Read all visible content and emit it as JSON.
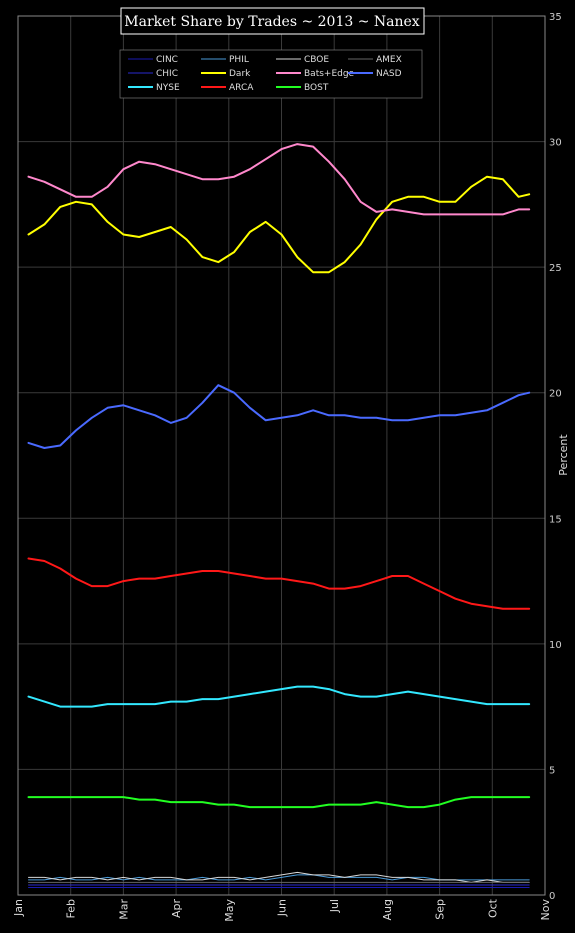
{
  "chart_data": {
    "type": "line",
    "title": "Market Share by Trades ~ 2013 ~ Nanex",
    "ylabel": "Percent",
    "xlabel": "",
    "ylim": [
      0,
      35
    ],
    "yticks": [
      0,
      5,
      10,
      15,
      20,
      25,
      30,
      35
    ],
    "xlim": [
      0,
      10
    ],
    "xticks": [
      {
        "label": "Jan",
        "x": 0
      },
      {
        "label": "Feb",
        "x": 1
      },
      {
        "label": "Mar",
        "x": 2
      },
      {
        "label": "Apr",
        "x": 3
      },
      {
        "label": "May",
        "x": 4
      },
      {
        "label": "Jun",
        "x": 5
      },
      {
        "label": "Jul",
        "x": 6
      },
      {
        "label": "Aug",
        "x": 7
      },
      {
        "label": "Sep",
        "x": 8
      },
      {
        "label": "Oct",
        "x": 9
      },
      {
        "label": "Nov",
        "x": 10
      }
    ],
    "grid": true,
    "legend_position": "top-left",
    "x_month_index": [
      0.2,
      0.5,
      0.8,
      1.1,
      1.4,
      1.7,
      2.0,
      2.3,
      2.6,
      2.9,
      3.2,
      3.5,
      3.8,
      4.1,
      4.4,
      4.7,
      5.0,
      5.3,
      5.6,
      5.9,
      6.2,
      6.5,
      6.8,
      7.1,
      7.4,
      7.7,
      8.0,
      8.3,
      8.6,
      8.9,
      9.2,
      9.5,
      9.7
    ],
    "series": [
      {
        "name": "CINC",
        "color": "#1a1ab0",
        "width": 1,
        "values": [
          0.3,
          0.3,
          0.3,
          0.3,
          0.3,
          0.3,
          0.3,
          0.3,
          0.3,
          0.3,
          0.3,
          0.3,
          0.3,
          0.3,
          0.3,
          0.3,
          0.3,
          0.3,
          0.3,
          0.3,
          0.3,
          0.3,
          0.3,
          0.3,
          0.3,
          0.3,
          0.3,
          0.3,
          0.3,
          0.3,
          0.3,
          0.3,
          0.3
        ]
      },
      {
        "name": "PHIL",
        "color": "#4a9ad8",
        "width": 1,
        "values": [
          0.6,
          0.6,
          0.7,
          0.6,
          0.6,
          0.7,
          0.6,
          0.7,
          0.6,
          0.6,
          0.6,
          0.7,
          0.6,
          0.6,
          0.7,
          0.6,
          0.7,
          0.8,
          0.8,
          0.7,
          0.7,
          0.7,
          0.7,
          0.6,
          0.7,
          0.7,
          0.6,
          0.6,
          0.6,
          0.6,
          0.6,
          0.6,
          0.6
        ]
      },
      {
        "name": "CBOE",
        "color": "#d8d8d8",
        "width": 1,
        "values": [
          0.7,
          0.7,
          0.6,
          0.7,
          0.7,
          0.6,
          0.7,
          0.6,
          0.7,
          0.7,
          0.6,
          0.6,
          0.7,
          0.7,
          0.6,
          0.7,
          0.8,
          0.9,
          0.8,
          0.8,
          0.7,
          0.8,
          0.8,
          0.7,
          0.7,
          0.6,
          0.6,
          0.6,
          0.5,
          0.6,
          0.5,
          0.5,
          0.5
        ]
      },
      {
        "name": "AMEX",
        "color": "#666666",
        "width": 1,
        "values": [
          0.5,
          0.5,
          0.5,
          0.5,
          0.5,
          0.5,
          0.5,
          0.5,
          0.5,
          0.5,
          0.5,
          0.5,
          0.5,
          0.5,
          0.5,
          0.5,
          0.5,
          0.5,
          0.5,
          0.5,
          0.5,
          0.5,
          0.5,
          0.5,
          0.5,
          0.5,
          0.5,
          0.5,
          0.5,
          0.5,
          0.5,
          0.5,
          0.5
        ]
      },
      {
        "name": "CHIC",
        "color": "#2a2ad0",
        "width": 1,
        "values": [
          0.4,
          0.4,
          0.4,
          0.4,
          0.4,
          0.4,
          0.4,
          0.4,
          0.4,
          0.4,
          0.4,
          0.4,
          0.4,
          0.4,
          0.4,
          0.4,
          0.4,
          0.4,
          0.4,
          0.4,
          0.4,
          0.4,
          0.4,
          0.4,
          0.4,
          0.4,
          0.4,
          0.4,
          0.4,
          0.4,
          0.4,
          0.4,
          0.4
        ]
      },
      {
        "name": "Dark",
        "color": "#ffff00",
        "width": 2,
        "values": [
          26.3,
          26.7,
          27.4,
          27.6,
          27.5,
          26.8,
          26.3,
          26.2,
          26.4,
          26.6,
          26.1,
          25.4,
          25.2,
          25.6,
          26.4,
          26.8,
          26.3,
          25.4,
          24.8,
          24.8,
          25.2,
          25.9,
          26.9,
          27.6,
          27.8,
          27.8,
          27.6,
          27.6,
          28.2,
          28.6,
          28.5,
          27.8,
          27.9
        ]
      },
      {
        "name": "Bats+Edge",
        "color": "#ff88cc",
        "width": 2,
        "values": [
          28.6,
          28.4,
          28.1,
          27.8,
          27.8,
          28.2,
          28.9,
          29.2,
          29.1,
          28.9,
          28.7,
          28.5,
          28.5,
          28.6,
          28.9,
          29.3,
          29.7,
          29.9,
          29.8,
          29.2,
          28.5,
          27.6,
          27.2,
          27.3,
          27.2,
          27.1,
          27.1,
          27.1,
          27.1,
          27.1,
          27.1,
          27.3,
          27.3
        ]
      },
      {
        "name": "NASD",
        "color": "#4a6aff",
        "width": 2,
        "values": [
          18.0,
          17.8,
          17.9,
          18.5,
          19.0,
          19.4,
          19.5,
          19.3,
          19.1,
          18.8,
          19.0,
          19.6,
          20.3,
          20.0,
          19.4,
          18.9,
          19.0,
          19.1,
          19.3,
          19.1,
          19.1,
          19.0,
          19.0,
          18.9,
          18.9,
          19.0,
          19.1,
          19.1,
          19.2,
          19.3,
          19.6,
          19.9,
          20.0
        ]
      },
      {
        "name": "NYSE",
        "color": "#33e8ff",
        "width": 2,
        "values": [
          7.9,
          7.7,
          7.5,
          7.5,
          7.5,
          7.6,
          7.6,
          7.6,
          7.6,
          7.7,
          7.7,
          7.8,
          7.8,
          7.9,
          8.0,
          8.1,
          8.2,
          8.3,
          8.3,
          8.2,
          8.0,
          7.9,
          7.9,
          8.0,
          8.1,
          8.0,
          7.9,
          7.8,
          7.7,
          7.6,
          7.6,
          7.6,
          7.6
        ]
      },
      {
        "name": "ARCA",
        "color": "#ff1818",
        "width": 2,
        "values": [
          13.4,
          13.3,
          13.0,
          12.6,
          12.3,
          12.3,
          12.5,
          12.6,
          12.6,
          12.7,
          12.8,
          12.9,
          12.9,
          12.8,
          12.7,
          12.6,
          12.6,
          12.5,
          12.4,
          12.2,
          12.2,
          12.3,
          12.5,
          12.7,
          12.7,
          12.4,
          12.1,
          11.8,
          11.6,
          11.5,
          11.4,
          11.4,
          11.4
        ]
      },
      {
        "name": "BOST",
        "color": "#22ff22",
        "width": 2,
        "values": [
          3.9,
          3.9,
          3.9,
          3.9,
          3.9,
          3.9,
          3.9,
          3.8,
          3.8,
          3.7,
          3.7,
          3.7,
          3.6,
          3.6,
          3.5,
          3.5,
          3.5,
          3.5,
          3.5,
          3.6,
          3.6,
          3.6,
          3.7,
          3.6,
          3.5,
          3.5,
          3.6,
          3.8,
          3.9,
          3.9,
          3.9,
          3.9,
          3.9
        ]
      }
    ]
  }
}
